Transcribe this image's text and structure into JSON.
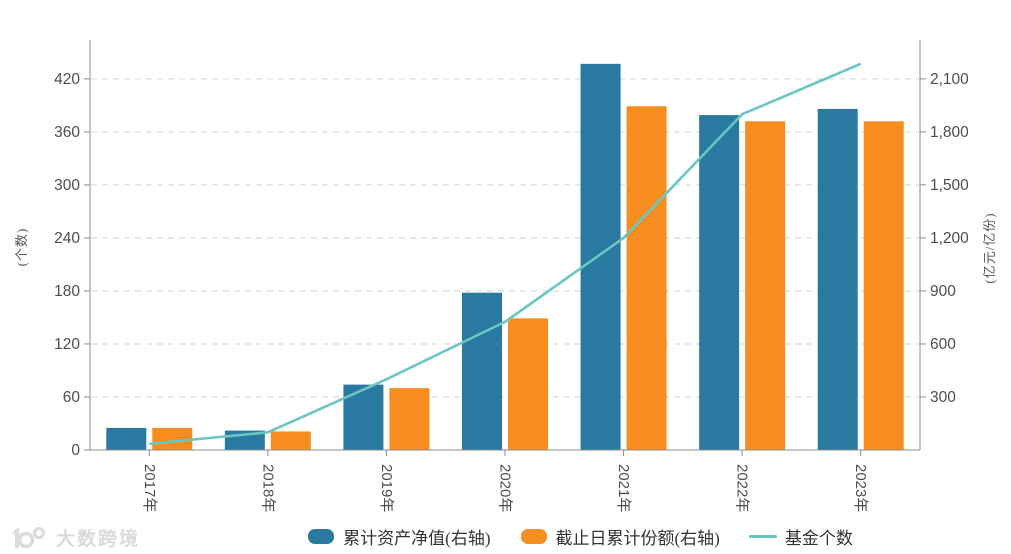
{
  "watermark": {
    "logo": "100",
    "text": "大数跨境"
  },
  "legend": [
    {
      "label": "累计资产净值(右轴)",
      "type": "bar",
      "color": "#2979a1"
    },
    {
      "label": "截止日累计份额(右轴)",
      "type": "bar",
      "color": "#f68d1e"
    },
    {
      "label": "基金个数",
      "type": "line",
      "color": "#6bc6c2"
    }
  ],
  "chart_data": {
    "type": "bar+line",
    "categories": [
      "2017年",
      "2018年",
      "2019年",
      "2020年",
      "2021年",
      "2022年",
      "2023年"
    ],
    "series": [
      {
        "name": "累计资产净值(右轴)",
        "type": "bar",
        "axis": "right",
        "color": "#2979a1",
        "values": [
          125,
          110,
          370,
          890,
          2185,
          1895,
          1930
        ]
      },
      {
        "name": "截止日累计份额(右轴)",
        "type": "bar",
        "axis": "right",
        "color": "#f68d1e",
        "values": [
          125,
          105,
          350,
          745,
          1945,
          1860,
          1860
        ]
      },
      {
        "name": "基金个数",
        "type": "line",
        "axis": "left",
        "color": "#6bc6c2",
        "values": [
          7,
          20,
          80,
          145,
          240,
          380,
          437
        ]
      }
    ],
    "left_axis": {
      "name": "(个数)",
      "ticks": [
        0,
        60,
        120,
        180,
        240,
        300,
        360,
        420
      ],
      "max": 464
    },
    "right_axis": {
      "name": "(亿元/亿份)",
      "ticks": [
        300,
        600,
        900,
        1200,
        1500,
        1800,
        2100
      ],
      "max": 2320
    },
    "grid": true,
    "legend_position": "bottom",
    "colors": {
      "axis_line": "#8c8c8c",
      "grid_line": "#dedede",
      "tick_text": "#4d4d4d"
    }
  }
}
